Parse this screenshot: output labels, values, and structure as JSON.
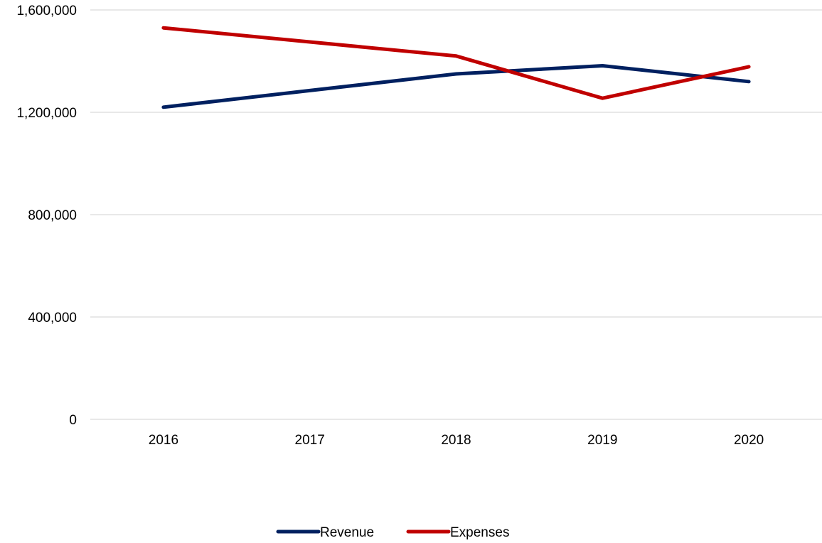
{
  "chart_data": {
    "type": "line",
    "title": "",
    "xlabel": "",
    "ylabel": "",
    "categories": [
      "2016",
      "2017",
      "2018",
      "2019",
      "2020"
    ],
    "series": [
      {
        "name": "Revenue",
        "color": "#002060",
        "values": [
          1220000,
          1285000,
          1350000,
          1382000,
          1320000
        ]
      },
      {
        "name": "Expenses",
        "color": "#C00000",
        "values": [
          1530000,
          1475000,
          1420000,
          1255000,
          1378000
        ]
      }
    ],
    "ylim": [
      0,
      1600000
    ],
    "y_ticks": [
      0,
      400000,
      800000,
      1200000,
      1600000
    ],
    "y_tick_labels": [
      "0",
      "400,000",
      "800,000",
      "1,200,000",
      "1,600,000"
    ],
    "grid": true,
    "legend_position": "bottom"
  }
}
